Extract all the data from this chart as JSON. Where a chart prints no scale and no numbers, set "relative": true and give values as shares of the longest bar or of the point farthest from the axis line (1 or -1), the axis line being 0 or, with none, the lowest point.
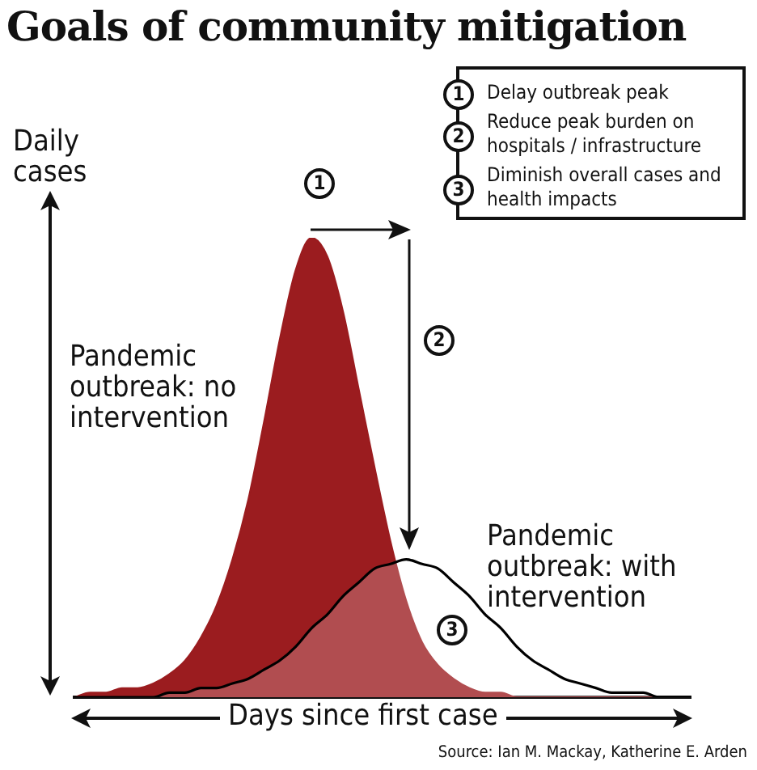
{
  "chart_data": {
    "type": "area",
    "title": "Goals of community mitigation",
    "xlabel": "Days since first case",
    "ylabel": "Daily cases",
    "relative": true,
    "categories": [
      null,
      null,
      null,
      null,
      null,
      null,
      null,
      null,
      null,
      null,
      null,
      null,
      null,
      null,
      null,
      null,
      null,
      null,
      null,
      null,
      null,
      null,
      null,
      null,
      null,
      null,
      null,
      null,
      null,
      null,
      null,
      null,
      null,
      null,
      null,
      null,
      null,
      null,
      null,
      null
    ],
    "series": [
      {
        "name": "Pandemic outbreak: no intervention",
        "color": "#9b1c1f",
        "values": [
          0,
          0.01,
          0.01,
          0.02,
          0.02,
          0.03,
          0.05,
          0.08,
          0.13,
          0.2,
          0.3,
          0.43,
          0.6,
          0.78,
          0.93,
          1,
          0.96,
          0.84,
          0.67,
          0.5,
          0.34,
          0.21,
          0.12,
          0.07,
          0.04,
          0.02,
          0.01,
          0.01,
          0,
          0,
          0,
          0,
          0,
          0,
          0,
          0,
          0,
          0,
          0,
          0
        ]
      },
      {
        "name": "Pandemic outbreak: with intervention",
        "color": "#000000",
        "values": [
          0,
          0,
          0,
          0,
          0,
          0,
          0.01,
          0.01,
          0.02,
          0.02,
          0.03,
          0.04,
          0.06,
          0.08,
          0.11,
          0.15,
          0.18,
          0.22,
          0.25,
          0.28,
          0.29,
          0.3,
          0.29,
          0.28,
          0.25,
          0.22,
          0.18,
          0.15,
          0.11,
          0.08,
          0.06,
          0.04,
          0.03,
          0.02,
          0.01,
          0.01,
          0.01,
          0,
          0,
          0
        ]
      }
    ],
    "annotations": [
      "1",
      "2",
      "3",
      "Delay outbreak peak",
      "Reduce peak burden on hospitals / infrastructure",
      "Diminish overall cases and health impacts",
      "Source: Ian M. Mackay, Katherine E. Arden"
    ]
  }
}
